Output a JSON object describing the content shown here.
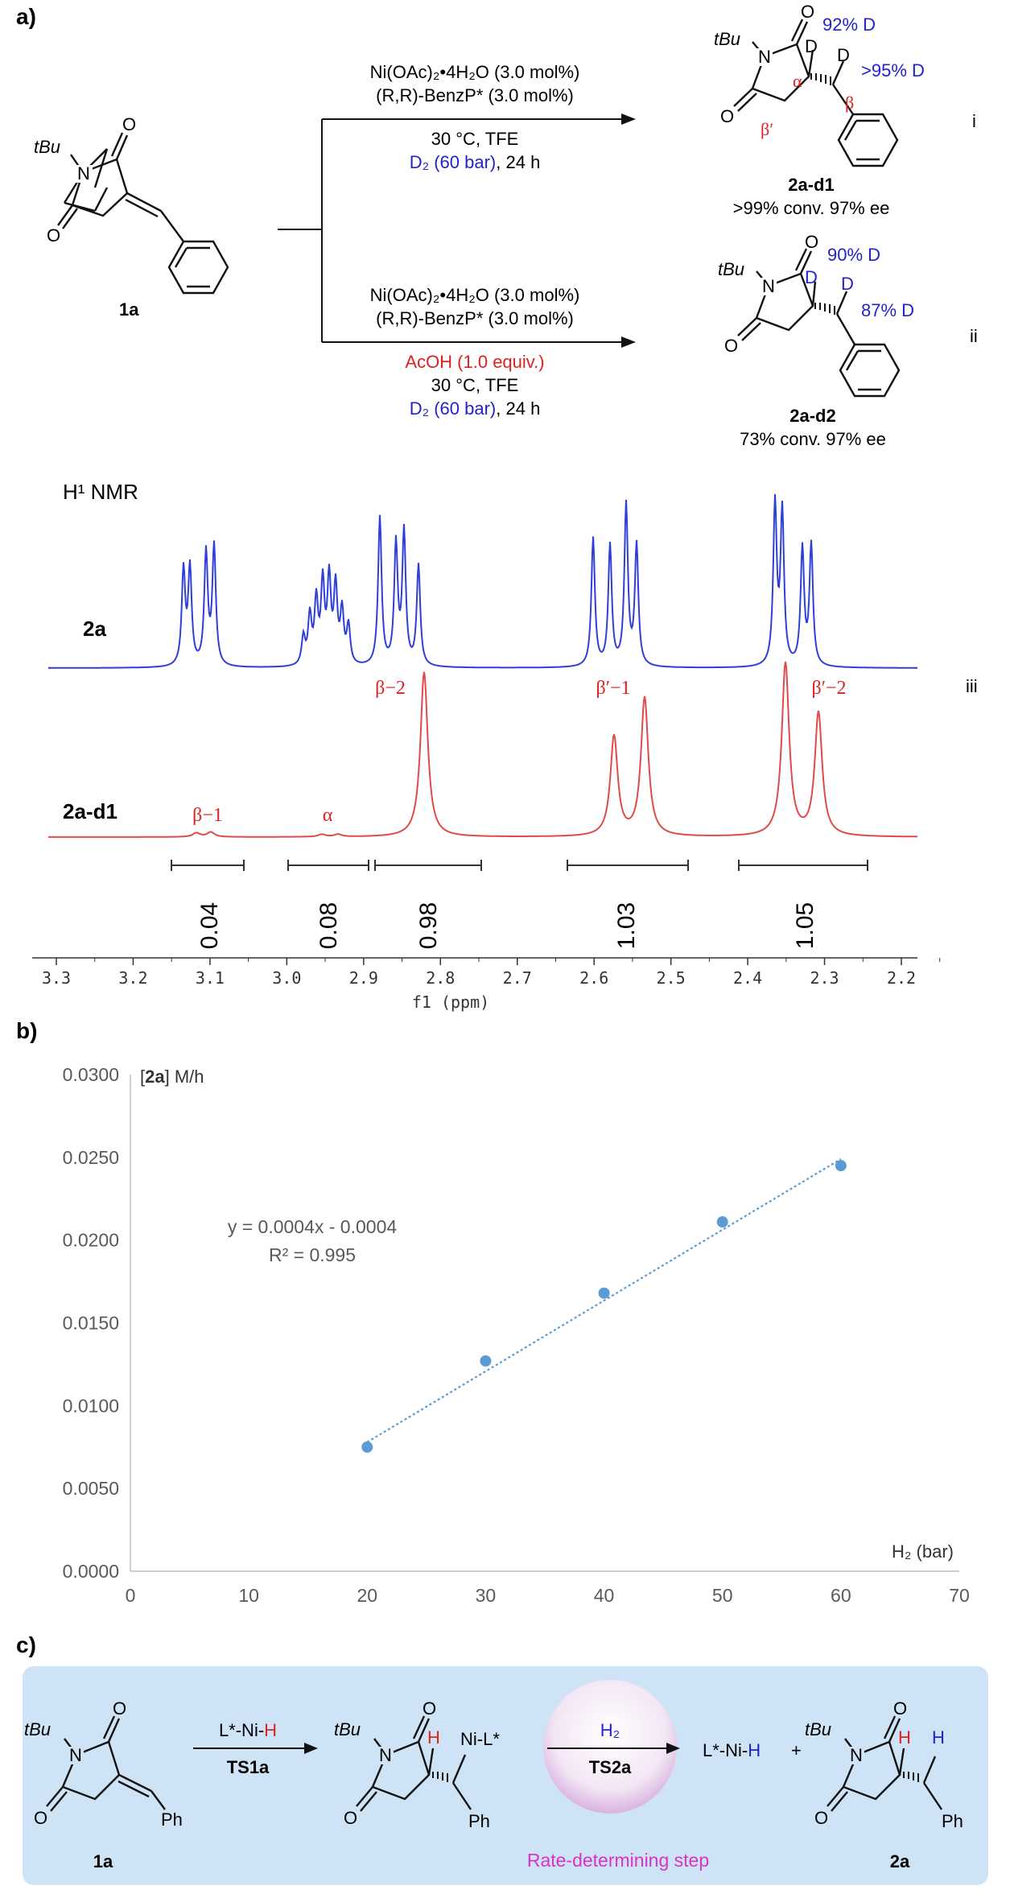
{
  "panel_labels": {
    "a": "a)",
    "b": "b)",
    "c": "c)"
  },
  "colors": {
    "blue": "#2222cc",
    "red": "#dd2222",
    "nmr_blue": "#2f3fd6",
    "nmr_red": "#e04a4a",
    "fit": "#5b9bd5",
    "scheme_bg": "#cfe3f7",
    "magenta": "#d633c8"
  },
  "scheme_a": {
    "sm_label": "1a",
    "tbu": "tBu",
    "n": "N",
    "o": "O",
    "route_i": {
      "catalyst": "Ni(OAc)₂•4H₂O (3.0 mol%)",
      "ligand": "(R,R)-BenzP* (3.0 mol%)",
      "conditions": "30 °C, TFE",
      "d2": "D₂ (60 bar)",
      "time": ", 24 h",
      "product": "2a-d1",
      "result": ">99% conv. 97% ee",
      "label_d_alpha": "92% D",
      "label_d_beta": ">95% D",
      "d": "D",
      "alpha": "α",
      "beta": "β",
      "beta_prime": "β′",
      "roman": "i"
    },
    "route_ii": {
      "catalyst": "Ni(OAc)₂•4H₂O (3.0 mol%)",
      "ligand": "(R,R)-BenzP* (3.0 mol%)",
      "additive": "AcOH (1.0 equiv.)",
      "conditions": "30 °C, TFE",
      "d2": "D₂ (60 bar)",
      "time": ", 24 h",
      "product": "2a-d2",
      "result": "73% conv. 97% ee",
      "label_d_alpha": "90% D",
      "label_d_beta": "87% D",
      "d": "D",
      "roman": "ii"
    }
  },
  "nmr": {
    "title": "H¹ NMR",
    "trace_top": "2a",
    "trace_bottom": "2a-d1",
    "roman": "iii",
    "peak_labels": [
      "β−1",
      "α",
      "β−2",
      "β′−1",
      "β′−2"
    ],
    "integrals": [
      "0.04",
      "0.08",
      "0.98",
      "1.03",
      "1.05"
    ],
    "axis_ticks": [
      "3.3",
      "3.2",
      "3.1",
      "3.0",
      "2.9",
      "2.8",
      "2.7",
      "2.6",
      "2.5",
      "2.4",
      "2.3",
      "2.2"
    ],
    "axis_label": "f1 (ppm)"
  },
  "chart_data": {
    "type": "scatter",
    "x": [
      20,
      30,
      40,
      50,
      60
    ],
    "y": [
      0.0075,
      0.0127,
      0.0168,
      0.0211,
      0.0245
    ],
    "xlim": [
      0,
      70
    ],
    "ylim": [
      0,
      0.03
    ],
    "xticks": [
      "0",
      "10",
      "20",
      "30",
      "40",
      "50",
      "60",
      "70"
    ],
    "yticks": [
      "0.0000",
      "0.0050",
      "0.0100",
      "0.0150",
      "0.0200",
      "0.0250",
      "0.0300"
    ],
    "ylabel_bold": "2a",
    "ylabel_unit": "M/h",
    "xlabel": "H₂ (bar)",
    "trendline": {
      "slope": 0.0004,
      "intercept": -0.0004,
      "from_x": 20,
      "to_x": 60,
      "y_start": 0.0078,
      "y_end": 0.0249
    },
    "equation": "y = 0.0004x - 0.0004",
    "r2": "R² = 0.995",
    "grid": false
  },
  "scheme_c": {
    "sm_label": "1a",
    "ph": "Ph",
    "reagent_1": "L*-Ni-H",
    "ts1": "TS1a",
    "h": "H",
    "ni_l": "Ni-L*",
    "h2": "H₂",
    "ts2": "TS2a",
    "product_pair": "L*-Ni-H",
    "plus": "+",
    "product_label": "2a",
    "rds": "Rate-determining step",
    "tbu": "tBu"
  }
}
